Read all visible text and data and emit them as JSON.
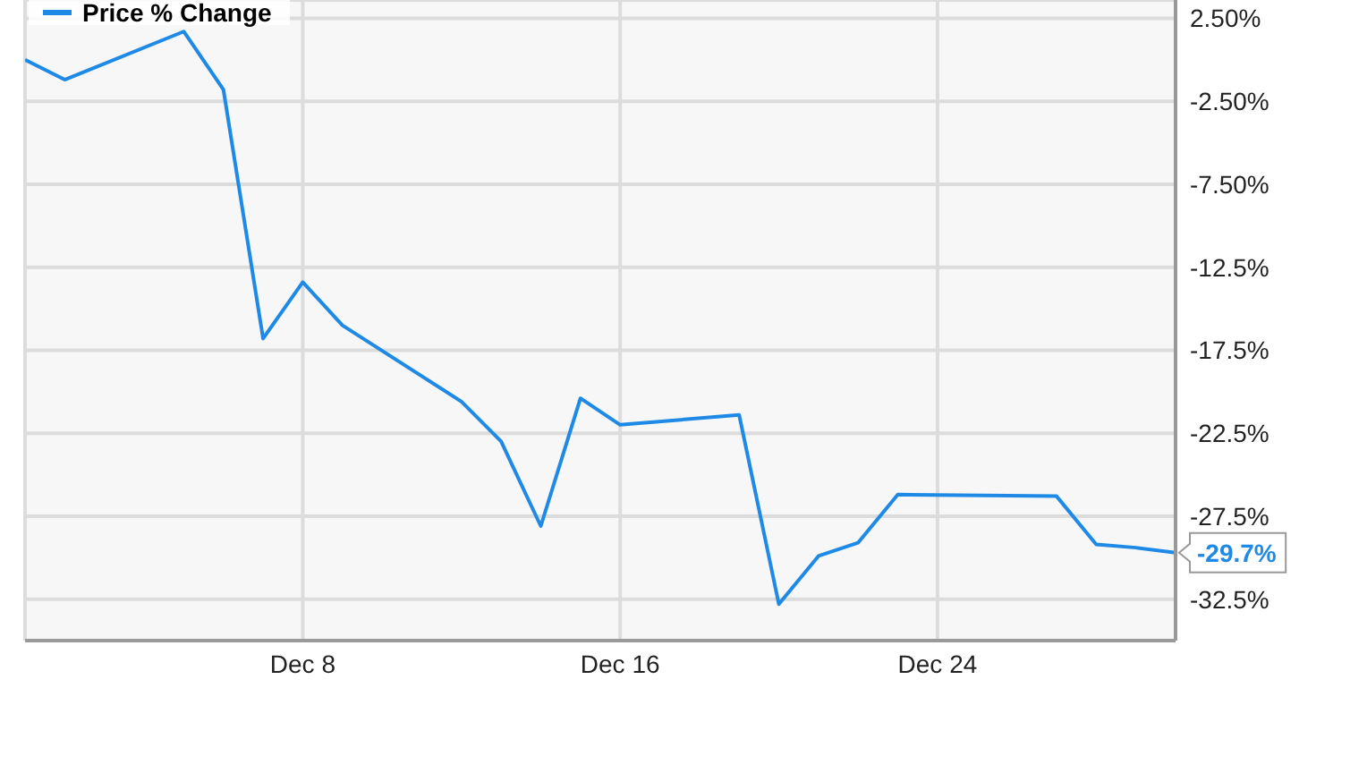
{
  "chart_data": {
    "type": "line",
    "x": [
      "--12-01",
      "--12-02",
      "--12-05",
      "--12-06",
      "--12-07",
      "--12-08",
      "--12-09",
      "--12-12",
      "--12-13",
      "--12-14",
      "--12-15",
      "--12-16",
      "--12-19",
      "--12-20",
      "--12-21",
      "--12-22",
      "--12-23",
      "--12-27",
      "--12-28",
      "--12-29",
      "--12-30"
    ],
    "series": [
      {
        "name": "Price % Change",
        "color": "#1e8ae6",
        "values": [
          0.0,
          -1.2,
          1.7,
          -1.8,
          -16.8,
          -13.4,
          -16.0,
          -20.6,
          -23.0,
          -28.1,
          -20.4,
          -22.0,
          -21.4,
          -32.8,
          -29.9,
          -29.1,
          -26.2,
          -26.3,
          -29.2,
          -29.4,
          -29.7
        ],
        "value_labels": [
          null,
          null,
          null,
          null,
          null,
          null,
          null,
          null,
          null,
          null,
          null,
          null,
          null,
          null,
          null,
          null,
          null,
          null,
          null,
          null,
          "-29.7%"
        ]
      }
    ],
    "xlim": [
      "--12-01",
      "--12-30"
    ],
    "xticks": [
      {
        "value": "--12-08",
        "label": "Dec 8"
      },
      {
        "value": "--12-16",
        "label": "Dec 16"
      },
      {
        "value": "--12-24",
        "label": "Dec 24"
      }
    ],
    "ylim": [
      -35,
      3.6
    ],
    "yticks": [
      {
        "value": 2.5,
        "label": "2.50%"
      },
      {
        "value": -2.5,
        "label": "-2.50%"
      },
      {
        "value": -7.5,
        "label": "-7.50%"
      },
      {
        "value": -12.5,
        "label": "-12.5%"
      },
      {
        "value": -17.5,
        "label": "-17.5%"
      },
      {
        "value": -22.5,
        "label": "-22.5%"
      },
      {
        "value": -27.5,
        "label": "-27.5%"
      },
      {
        "value": -32.5,
        "label": "-32.5%"
      }
    ],
    "grid": true,
    "legend": "top left",
    "marker": "none",
    "line_style": "solid"
  }
}
